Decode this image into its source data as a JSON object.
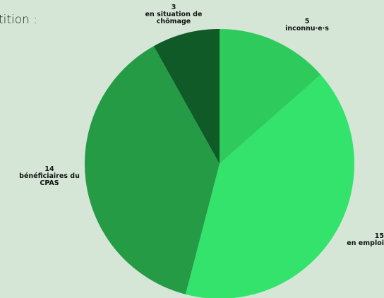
{
  "chart_data": {
    "type": "pie",
    "title": "tition :",
    "categories": [
      "inconnu·e·s",
      "en emploi",
      "bénéficiaires du CPAS",
      "en situation de chômage"
    ],
    "values": [
      5,
      15,
      14,
      3
    ],
    "colors": [
      "#2fca5c",
      "#33e36b",
      "#259b46",
      "#0f5a27"
    ]
  }
}
